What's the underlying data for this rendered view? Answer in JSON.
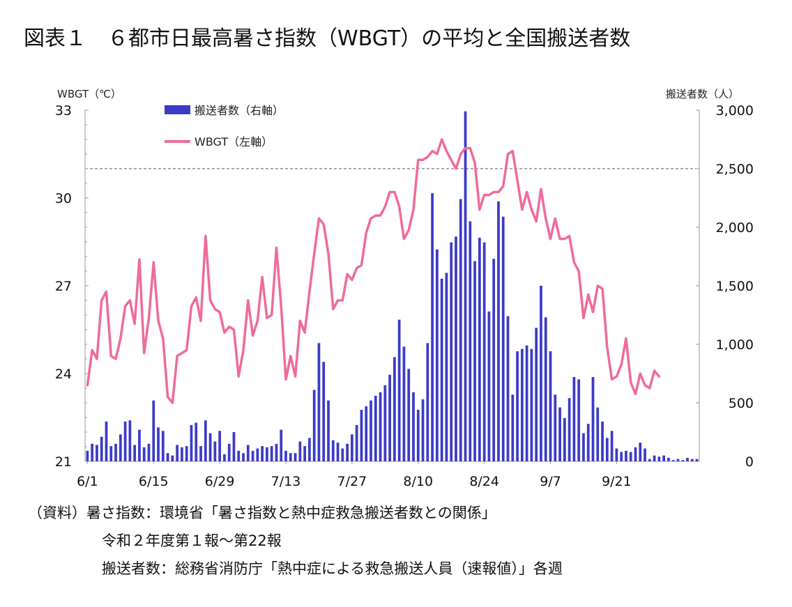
{
  "title": "図表１　６都市日最高暑さ指数（WBGT）の平均と全国搬送者数",
  "colors": {
    "bars": "#3b3bc8",
    "line": "#ef6b9c",
    "axis": "#999999",
    "ref": "#555555"
  },
  "notes": {
    "line1": "（資料）暑さ指数：環境省「暑さ指数と熱中症救急搬送者数との関係」",
    "line2": "令和２年度第１報～第22報",
    "line3": "搬送者数：総務省消防庁「熱中症による救急搬送人員（速報値）」各週"
  },
  "chart_data": {
    "type": "bar+line",
    "y_left": {
      "label": "WBGT（℃）",
      "min": 21,
      "max": 33,
      "ticks": [
        21,
        24,
        27,
        30,
        33
      ],
      "reference_line": 31
    },
    "y_right": {
      "label": "搬送者数（人）",
      "min": 0,
      "max": 3000,
      "ticks": [
        0,
        500,
        1000,
        1500,
        2000,
        2500,
        3000
      ],
      "tick_labels": [
        "0",
        "500",
        "1,000",
        "1,500",
        "2,000",
        "2,500",
        "3,000"
      ]
    },
    "x_ticks": [
      "6/1",
      "6/15",
      "6/29",
      "7/13",
      "7/27",
      "8/10",
      "8/24",
      "9/7",
      "9/21"
    ],
    "legend": [
      "搬送者数（右軸）",
      "WBGT（左軸）"
    ],
    "series": [
      {
        "name": "搬送者数（右軸）",
        "type": "bar",
        "axis": "right",
        "values": [
          90,
          150,
          140,
          210,
          340,
          130,
          150,
          230,
          340,
          350,
          140,
          270,
          120,
          150,
          520,
          290,
          260,
          70,
          50,
          140,
          120,
          130,
          310,
          330,
          130,
          350,
          240,
          170,
          260,
          60,
          150,
          250,
          90,
          70,
          140,
          90,
          110,
          130,
          120,
          130,
          150,
          270,
          90,
          70,
          70,
          170,
          130,
          200,
          610,
          1010,
          850,
          520,
          180,
          160,
          110,
          150,
          230,
          310,
          440,
          470,
          520,
          560,
          590,
          650,
          740,
          890,
          1210,
          980,
          790,
          590,
          440,
          530,
          1010,
          2290,
          1810,
          1560,
          1610,
          1870,
          1920,
          2240,
          2990,
          2050,
          1710,
          1910,
          1870,
          1280,
          1730,
          2220,
          2090,
          1240,
          570,
          940,
          960,
          990,
          960,
          1140,
          1500,
          1230,
          940,
          570,
          460,
          370,
          540,
          720,
          700,
          240,
          320,
          720,
          460,
          340,
          200,
          260,
          110,
          80,
          90,
          80,
          120,
          160,
          110,
          20,
          50,
          40,
          50,
          30,
          10,
          20,
          10,
          30,
          20,
          20
        ]
      },
      {
        "name": "WBGT（左軸）",
        "type": "line",
        "axis": "left",
        "values": [
          23.6,
          24.8,
          24.5,
          26.5,
          26.8,
          24.6,
          24.5,
          25.2,
          26.3,
          26.5,
          25.7,
          27.9,
          24.7,
          25.9,
          27.8,
          25.8,
          25.2,
          23.2,
          23.0,
          24.6,
          24.7,
          24.8,
          26.3,
          26.6,
          25.8,
          28.7,
          26.5,
          26.2,
          26.1,
          25.4,
          25.6,
          25.5,
          23.9,
          24.8,
          26.5,
          25.3,
          25.8,
          27.3,
          25.9,
          26.0,
          28.3,
          26.3,
          23.8,
          24.6,
          23.9,
          25.8,
          25.4,
          26.8,
          28.1,
          29.3,
          29.1,
          28.1,
          26.2,
          26.5,
          26.5,
          27.4,
          27.2,
          27.6,
          27.7,
          28.8,
          29.3,
          29.4,
          29.4,
          29.7,
          30.2,
          30.2,
          29.7,
          28.6,
          28.9,
          29.6,
          31.3,
          31.3,
          31.4,
          31.6,
          31.5,
          32.0,
          31.6,
          31.3,
          31.0,
          31.5,
          31.7,
          31.7,
          31.2,
          29.6,
          30.1,
          30.1,
          30.2,
          30.2,
          30.4,
          31.5,
          31.6,
          30.6,
          29.6,
          30.2,
          29.6,
          29.2,
          30.3,
          29.3,
          28.6,
          29.3,
          28.6,
          28.6,
          28.7,
          27.8,
          27.5,
          25.9,
          26.7,
          26.1,
          27.0,
          26.9,
          24.9,
          23.8,
          23.9,
          24.3,
          25.2,
          23.7,
          23.3,
          24.0,
          23.6,
          23.5,
          24.1,
          23.9
        ]
      }
    ]
  }
}
